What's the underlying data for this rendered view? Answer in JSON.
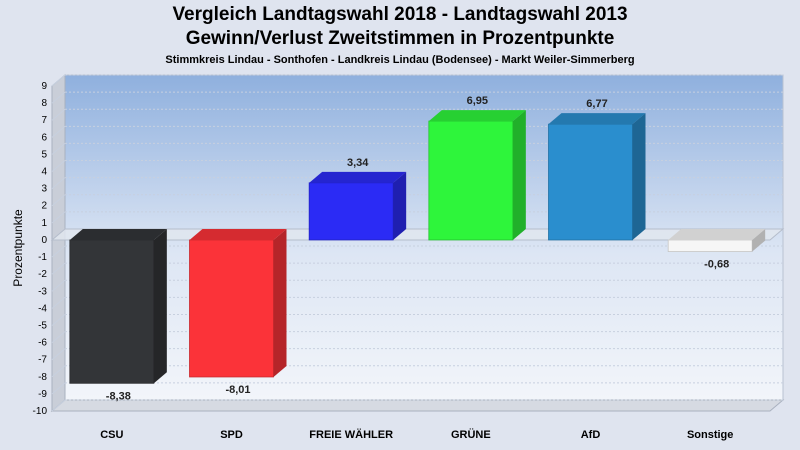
{
  "chart_data": {
    "type": "bar",
    "title": "Vergleich Landtagswahl 2018 - Landtagswahl 2013",
    "subtitle": "Gewinn/Verlust Zweitstimmen in Prozentpunkte",
    "subsubtitle": "Stimmkreis Lindau - Sonthofen - Landkreis Lindau (Bodensee) - Markt Weiler-Simmerberg",
    "ylabel": "Prozentpunkte",
    "xlabel": "",
    "ylim": [
      -10,
      9
    ],
    "yticks": [
      9,
      8,
      7,
      6,
      5,
      4,
      3,
      2,
      1,
      0,
      -1,
      -2,
      -3,
      -4,
      -5,
      -6,
      -7,
      -8,
      -9,
      -10
    ],
    "grid": true,
    "categories": [
      "CSU",
      "SPD",
      "FREIE WÄHLER",
      "GRÜNE",
      "AfD",
      "Sonstige"
    ],
    "values": [
      -8.38,
      -8.01,
      3.34,
      6.95,
      6.77,
      -0.68
    ],
    "value_labels": [
      "-8,38",
      "-8,01",
      "3,34",
      "6,95",
      "6,77",
      "-0,68"
    ],
    "colors": [
      "#333538",
      "#fb3339",
      "#2b2bf5",
      "#2ef53b",
      "#2a8ece",
      "#f6f6f6"
    ]
  }
}
